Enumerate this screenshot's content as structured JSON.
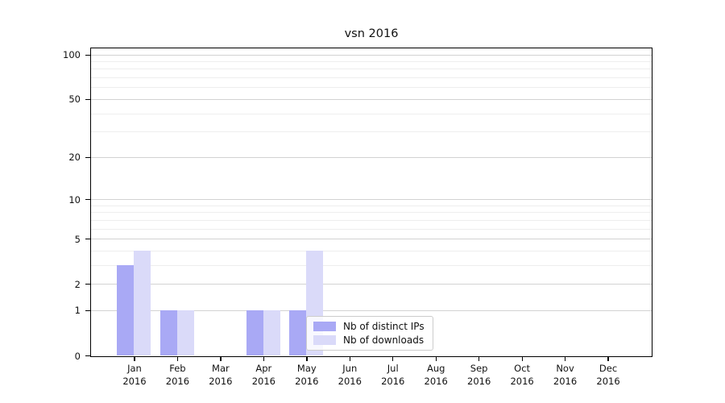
{
  "figure": {
    "title": "vsn 2016"
  },
  "chart_data": {
    "type": "bar",
    "title": "vsn 2016",
    "categories": [
      "Jan",
      "Feb",
      "Mar",
      "Apr",
      "May",
      "Jun",
      "Jul",
      "Aug",
      "Sep",
      "Oct",
      "Nov",
      "Dec"
    ],
    "category_year": "2016",
    "series": [
      {
        "name": "Nb of distinct IPs",
        "color": "#a9a9f5",
        "values": [
          3,
          1,
          0,
          1,
          1,
          0,
          0,
          0,
          0,
          0,
          0,
          0
        ]
      },
      {
        "name": "Nb of downloads",
        "color": "#dadaf9",
        "values": [
          4,
          1,
          0,
          1,
          4,
          0,
          0,
          0,
          0,
          0,
          0,
          0
        ]
      }
    ],
    "xlabel": "",
    "ylabel": "",
    "y_axis": {
      "scale": "log10(1+v)",
      "ticks": [
        100,
        50,
        20,
        10,
        5,
        2,
        1,
        0
      ],
      "minor_gridlines": [
        3,
        4,
        6,
        7,
        8,
        9,
        30,
        40,
        60,
        70,
        80,
        90
      ],
      "top_value": 110
    },
    "grid": true,
    "legend": {
      "position": "lower-center",
      "entries": [
        "Nb of distinct IPs",
        "Nb of downloads"
      ]
    },
    "colors": {
      "bar_distinct_ips": "#a9a9f5",
      "bar_downloads": "#dadaf9",
      "major_grid": "#d2d2d2",
      "minor_grid": "#eeeeee",
      "axis": "#000000",
      "background": "#ffffff"
    }
  }
}
